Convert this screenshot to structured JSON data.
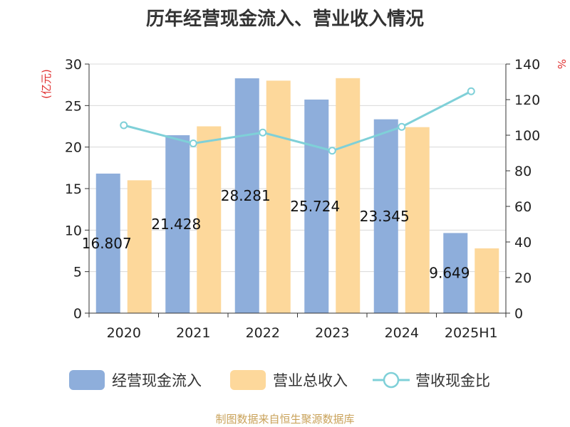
{
  "chart_data": {
    "type": "bar",
    "title": "历年经营现金流入、营业收入情况",
    "categories": [
      "2020",
      "2021",
      "2022",
      "2023",
      "2024",
      "2025H1"
    ],
    "series": [
      {
        "name": "经营现金流入",
        "kind": "bar",
        "axis": "left",
        "color": "#8eaedb",
        "values": [
          16.807,
          21.428,
          28.281,
          25.724,
          23.345,
          9.649
        ],
        "labels": [
          "16.807",
          "21.428",
          "28.281",
          "25.724",
          "23.345",
          "9.649"
        ]
      },
      {
        "name": "营业总收入",
        "kind": "bar",
        "axis": "left",
        "color": "#fdd89b",
        "values": [
          16.0,
          22.5,
          28.0,
          28.3,
          22.4,
          7.8
        ]
      },
      {
        "name": "营收现金比",
        "kind": "line",
        "axis": "right",
        "color": "#7fd0d8",
        "values": [
          105.6,
          95.4,
          101.5,
          91.3,
          104.7,
          124.7
        ]
      }
    ],
    "y_left": {
      "label": "(亿元)",
      "ylim": [
        0,
        30
      ],
      "ticks": [
        0,
        5,
        10,
        15,
        20,
        25,
        30
      ]
    },
    "y_right": {
      "label": "%",
      "ylim": [
        0,
        140
      ],
      "ticks": [
        0,
        20,
        40,
        60,
        80,
        100,
        120,
        140
      ]
    },
    "grid": true,
    "legend_position": "bottom"
  },
  "footer": {
    "source": "制图数据来自恒生聚源数据库"
  }
}
